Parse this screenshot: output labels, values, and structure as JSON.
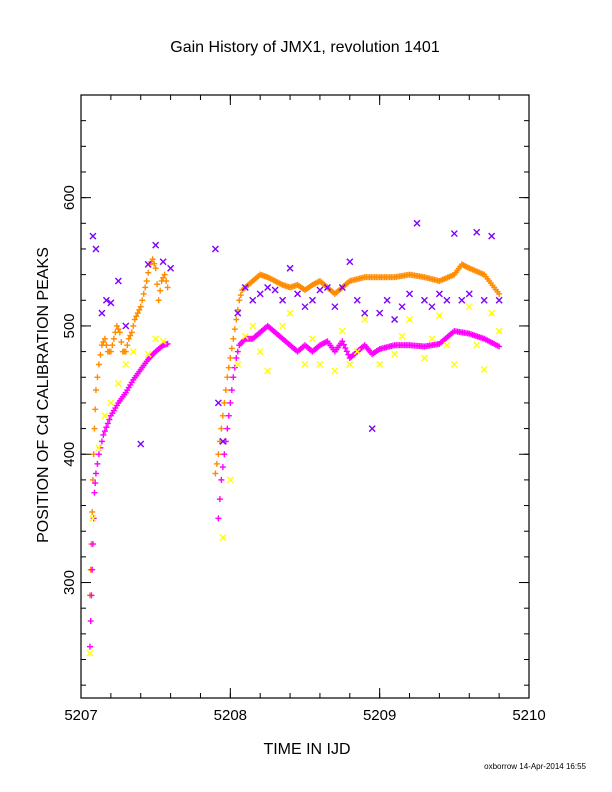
{
  "chart_data": {
    "type": "scatter",
    "title": "Gain History of JMX1, revolution 1401",
    "xlabel": "TIME IN IJD",
    "ylabel": "POSITION OF Cd CALIBRATION PEAKS",
    "xlim": [
      5207,
      5210
    ],
    "ylim": [
      210,
      680
    ],
    "xticks": [
      5207,
      5208,
      5209,
      5210
    ],
    "yticks": [
      300,
      400,
      500,
      600
    ],
    "xtick_labels": [
      "5207",
      "5208",
      "5209",
      "5210"
    ],
    "ytick_labels": [
      "300",
      "400",
      "500",
      "600"
    ],
    "grid": false,
    "legend": "none",
    "credit": "oxborrow 14-Apr-2014 16:55",
    "series": [
      {
        "color": "#ff8c00",
        "marker": "plus",
        "segments": [
          [
            [
              5207.06,
              290
            ],
            [
              5207.07,
              330
            ],
            [
              5207.08,
              380
            ],
            [
              5207.09,
              420
            ],
            [
              5207.1,
              450
            ],
            [
              5207.12,
              470
            ],
            [
              5207.14,
              485
            ],
            [
              5207.16,
              490
            ],
            [
              5207.18,
              480
            ],
            [
              5207.2,
              480
            ],
            [
              5207.22,
              490
            ],
            [
              5207.24,
              500
            ],
            [
              5207.26,
              495
            ],
            [
              5207.28,
              480
            ],
            [
              5207.3,
              480
            ],
            [
              5207.32,
              490
            ],
            [
              5207.34,
              495
            ],
            [
              5207.36,
              505
            ],
            [
              5207.38,
              510
            ],
            [
              5207.4,
              515
            ],
            [
              5207.42,
              525
            ],
            [
              5207.44,
              535
            ],
            [
              5207.46,
              548
            ],
            [
              5207.48,
              552
            ],
            [
              5207.5,
              545
            ],
            [
              5207.52,
              520
            ],
            [
              5207.54,
              535
            ],
            [
              5207.56,
              540
            ],
            [
              5207.58,
              530
            ]
          ],
          [
            [
              5207.9,
              385
            ],
            [
              5207.92,
              400
            ],
            [
              5207.94,
              420
            ],
            [
              5207.96,
              440
            ],
            [
              5207.98,
              460
            ],
            [
              5208.0,
              475
            ],
            [
              5208.02,
              490
            ],
            [
              5208.04,
              505
            ],
            [
              5208.06,
              520
            ],
            [
              5208.08,
              528
            ],
            [
              5208.1,
              530
            ],
            [
              5208.15,
              535
            ],
            [
              5208.2,
              540
            ],
            [
              5208.25,
              538
            ],
            [
              5208.3,
              535
            ],
            [
              5208.35,
              532
            ],
            [
              5208.4,
              530
            ],
            [
              5208.45,
              532
            ],
            [
              5208.5,
              528
            ],
            [
              5208.55,
              532
            ],
            [
              5208.6,
              535
            ],
            [
              5208.65,
              530
            ],
            [
              5208.7,
              525
            ],
            [
              5208.75,
              530
            ],
            [
              5208.8,
              535
            ],
            [
              5208.9,
              538
            ],
            [
              5209.0,
              538
            ],
            [
              5209.1,
              538
            ],
            [
              5209.2,
              540
            ],
            [
              5209.3,
              538
            ],
            [
              5209.4,
              535
            ],
            [
              5209.5,
              540
            ],
            [
              5209.55,
              548
            ],
            [
              5209.6,
              545
            ],
            [
              5209.7,
              540
            ],
            [
              5209.8,
              525
            ]
          ]
        ]
      },
      {
        "color": "#ff00ff",
        "marker": "plus",
        "segments": [
          [
            [
              5207.06,
              250
            ],
            [
              5207.07,
              290
            ],
            [
              5207.08,
              330
            ],
            [
              5207.09,
              370
            ],
            [
              5207.1,
              385
            ],
            [
              5207.12,
              400
            ],
            [
              5207.15,
              415
            ],
            [
              5207.2,
              430
            ],
            [
              5207.25,
              440
            ],
            [
              5207.3,
              448
            ],
            [
              5207.35,
              458
            ],
            [
              5207.4,
              466
            ],
            [
              5207.45,
              474
            ],
            [
              5207.5,
              480
            ],
            [
              5207.55,
              485
            ],
            [
              5207.58,
              486
            ]
          ],
          [
            [
              5207.92,
              350
            ],
            [
              5207.94,
              380
            ],
            [
              5207.96,
              400
            ],
            [
              5207.98,
              420
            ],
            [
              5208.0,
              440
            ],
            [
              5208.02,
              460
            ],
            [
              5208.04,
              475
            ],
            [
              5208.06,
              485
            ],
            [
              5208.1,
              490
            ],
            [
              5208.15,
              490
            ],
            [
              5208.2,
              495
            ],
            [
              5208.25,
              500
            ],
            [
              5208.3,
              495
            ],
            [
              5208.35,
              490
            ],
            [
              5208.4,
              485
            ],
            [
              5208.45,
              480
            ],
            [
              5208.5,
              485
            ],
            [
              5208.55,
              480
            ],
            [
              5208.6,
              485
            ],
            [
              5208.65,
              488
            ],
            [
              5208.7,
              480
            ],
            [
              5208.75,
              488
            ],
            [
              5208.8,
              475
            ],
            [
              5208.85,
              480
            ],
            [
              5208.9,
              485
            ],
            [
              5208.95,
              478
            ],
            [
              5209.0,
              482
            ],
            [
              5209.1,
              485
            ],
            [
              5209.2,
              485
            ],
            [
              5209.3,
              484
            ],
            [
              5209.4,
              486
            ],
            [
              5209.5,
              496
            ],
            [
              5209.6,
              494
            ],
            [
              5209.7,
              490
            ],
            [
              5209.8,
              484
            ]
          ]
        ]
      },
      {
        "color": "#ffff00",
        "marker": "x",
        "points": [
          [
            5207.06,
            245
          ],
          [
            5207.08,
            350
          ],
          [
            5207.12,
            405
          ],
          [
            5207.16,
            430
          ],
          [
            5207.2,
            440
          ],
          [
            5207.25,
            455
          ],
          [
            5207.3,
            470
          ],
          [
            5207.35,
            480
          ],
          [
            5207.45,
            478
          ],
          [
            5207.5,
            490
          ],
          [
            5207.55,
            488
          ],
          [
            5207.95,
            335
          ],
          [
            5208.0,
            380
          ],
          [
            5208.05,
            470
          ],
          [
            5208.1,
            492
          ],
          [
            5208.15,
            500
          ],
          [
            5208.2,
            480
          ],
          [
            5208.25,
            465
          ],
          [
            5208.35,
            500
          ],
          [
            5208.4,
            510
          ],
          [
            5208.5,
            470
          ],
          [
            5208.55,
            490
          ],
          [
            5208.6,
            470
          ],
          [
            5208.7,
            465
          ],
          [
            5208.75,
            496
          ],
          [
            5208.8,
            470
          ],
          [
            5208.85,
            480
          ],
          [
            5208.9,
            505
          ],
          [
            5209.0,
            470
          ],
          [
            5209.1,
            478
          ],
          [
            5209.15,
            492
          ],
          [
            5209.2,
            505
          ],
          [
            5209.3,
            475
          ],
          [
            5209.35,
            490
          ],
          [
            5209.4,
            508
          ],
          [
            5209.45,
            485
          ],
          [
            5209.5,
            470
          ],
          [
            5209.6,
            515
          ],
          [
            5209.65,
            485
          ],
          [
            5209.7,
            466
          ],
          [
            5209.75,
            510
          ],
          [
            5209.8,
            496
          ]
        ]
      },
      {
        "color": "#7f00ff",
        "marker": "x",
        "points": [
          [
            5207.08,
            570
          ],
          [
            5207.1,
            560
          ],
          [
            5207.14,
            510
          ],
          [
            5207.17,
            520
          ],
          [
            5207.2,
            518
          ],
          [
            5207.25,
            535
          ],
          [
            5207.3,
            500
          ],
          [
            5207.4,
            408
          ],
          [
            5207.45,
            548
          ],
          [
            5207.5,
            563
          ],
          [
            5207.55,
            550
          ],
          [
            5207.6,
            545
          ],
          [
            5207.9,
            560
          ],
          [
            5207.92,
            440
          ],
          [
            5207.95,
            410
          ],
          [
            5208.05,
            510
          ],
          [
            5208.1,
            530
          ],
          [
            5208.15,
            520
          ],
          [
            5208.2,
            525
          ],
          [
            5208.25,
            530
          ],
          [
            5208.3,
            528
          ],
          [
            5208.35,
            520
          ],
          [
            5208.4,
            545
          ],
          [
            5208.45,
            525
          ],
          [
            5208.5,
            515
          ],
          [
            5208.55,
            520
          ],
          [
            5208.6,
            528
          ],
          [
            5208.65,
            530
          ],
          [
            5208.7,
            515
          ],
          [
            5208.75,
            530
          ],
          [
            5208.8,
            550
          ],
          [
            5208.85,
            520
          ],
          [
            5208.9,
            510
          ],
          [
            5208.95,
            420
          ],
          [
            5209.0,
            510
          ],
          [
            5209.05,
            520
          ],
          [
            5209.1,
            505
          ],
          [
            5209.15,
            515
          ],
          [
            5209.2,
            525
          ],
          [
            5209.25,
            580
          ],
          [
            5209.3,
            520
          ],
          [
            5209.35,
            515
          ],
          [
            5209.4,
            525
          ],
          [
            5209.45,
            520
          ],
          [
            5209.5,
            572
          ],
          [
            5209.55,
            520
          ],
          [
            5209.6,
            525
          ],
          [
            5209.65,
            573
          ],
          [
            5209.7,
            520
          ],
          [
            5209.75,
            570
          ],
          [
            5209.8,
            520
          ]
        ]
      }
    ]
  }
}
